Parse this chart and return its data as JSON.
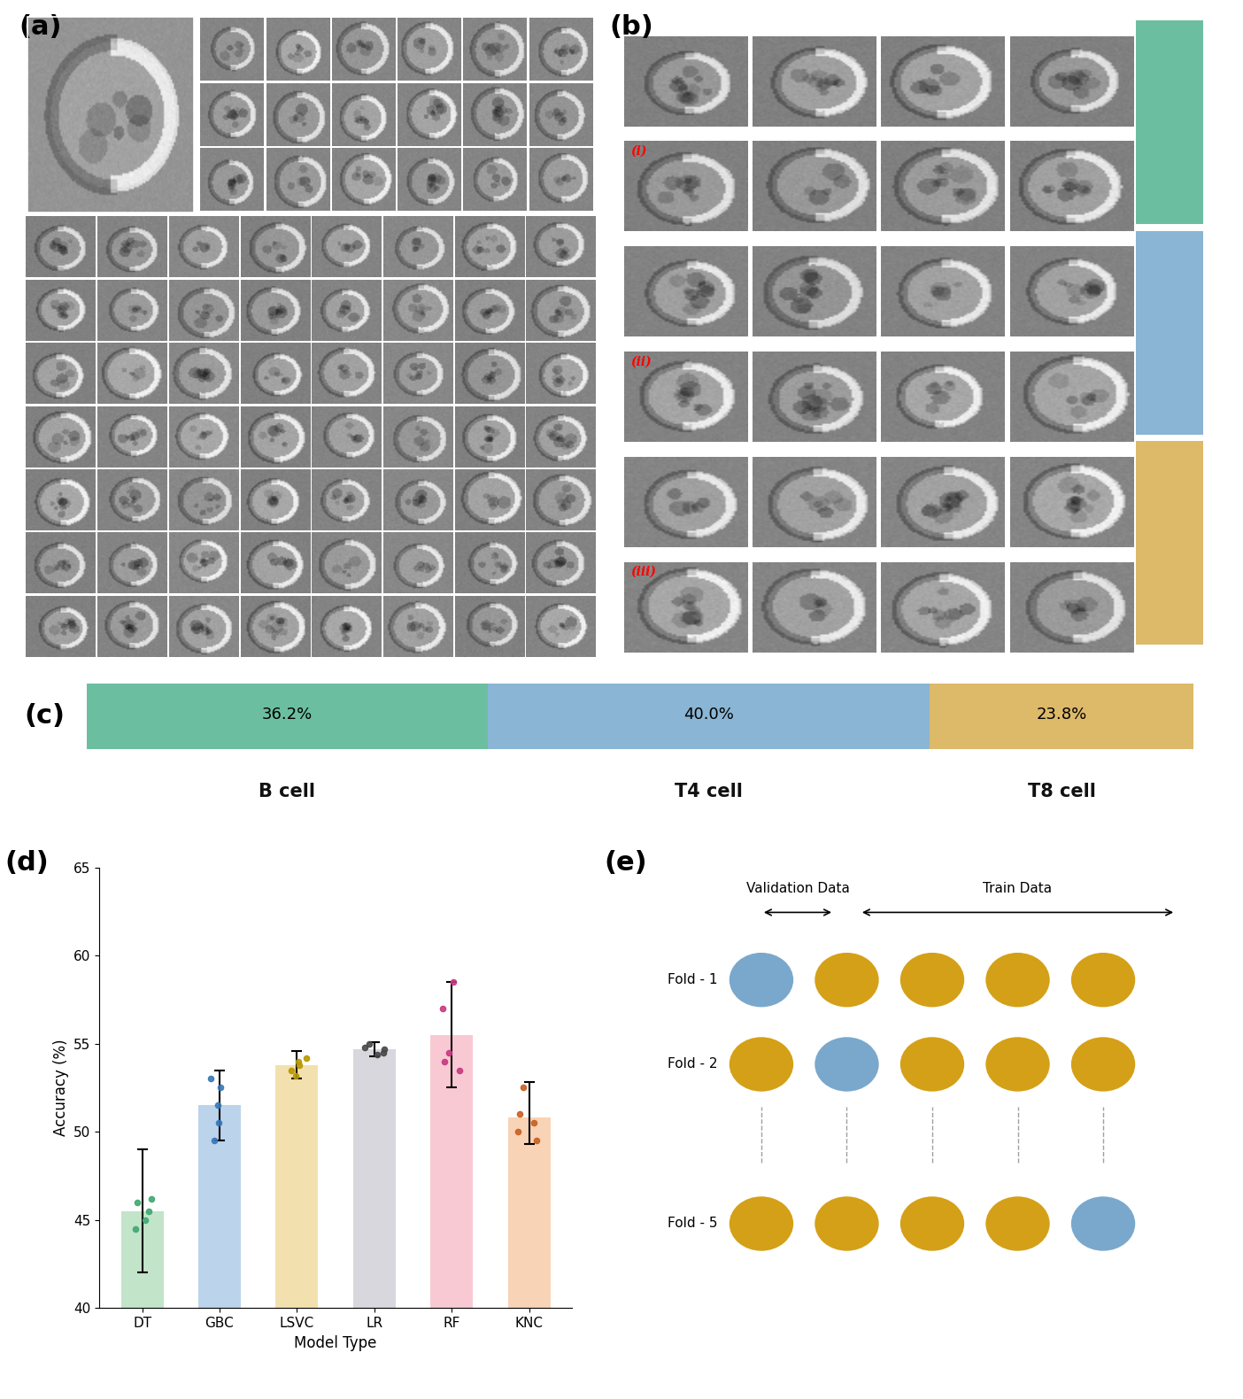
{
  "panel_c": {
    "segments": [
      {
        "label": "B cell",
        "pct": "36.2%",
        "value": 36.2,
        "color": "#6bbfa0"
      },
      {
        "label": "T4 cell",
        "pct": "40.0%",
        "value": 40.0,
        "color": "#8ab5d4"
      },
      {
        "label": "T8 cell",
        "pct": "23.8%",
        "value": 23.8,
        "color": "#ddb96a"
      }
    ]
  },
  "panel_d": {
    "models": [
      "DT",
      "GBC",
      "LSVC",
      "LR",
      "RF",
      "KNC"
    ],
    "means": [
      45.5,
      51.5,
      53.8,
      54.7,
      55.5,
      50.8
    ],
    "errors_up": [
      3.5,
      2.0,
      0.8,
      0.4,
      3.0,
      2.0
    ],
    "errors_dn": [
      3.5,
      2.0,
      0.8,
      0.4,
      3.0,
      1.5
    ],
    "bar_colors": [
      "#b8e0c0",
      "#b0cce8",
      "#f0dca0",
      "#d0d0d8",
      "#f8c0cc",
      "#f8cca8"
    ],
    "dot_colors": [
      "#40a870",
      "#3878b8",
      "#b89800",
      "#484848",
      "#c83880",
      "#c86020"
    ],
    "scatter_data": {
      "DT": [
        45.0,
        46.2,
        45.5,
        44.5,
        46.0
      ],
      "GBC": [
        49.5,
        50.5,
        53.0,
        52.5,
        51.5
      ],
      "LSVC": [
        53.2,
        54.0,
        54.2,
        53.5,
        53.8
      ],
      "LR": [
        54.5,
        54.8,
        55.0,
        54.4,
        54.7
      ],
      "RF": [
        58.5,
        53.5,
        57.0,
        54.5,
        54.0
      ],
      "KNC": [
        49.5,
        50.0,
        52.5,
        51.0,
        50.5
      ]
    },
    "xlabel": "Model Type",
    "ylabel": "Accuracy (%)",
    "ylim": [
      40,
      65
    ],
    "yticks": [
      40,
      45,
      50,
      55,
      60,
      65
    ]
  },
  "panel_e": {
    "folds": [
      "Fold - 1",
      "Fold - 2",
      "Fold - 5"
    ],
    "n_cols": 5,
    "val_col": [
      0,
      1,
      4
    ],
    "train_color": "#d4a017",
    "val_color": "#7aa8cc",
    "val_label": "Validation Data",
    "train_label": "Train Data"
  },
  "panel_label_fontsize": 22,
  "axis_label_fontsize": 12,
  "tick_fontsize": 11
}
